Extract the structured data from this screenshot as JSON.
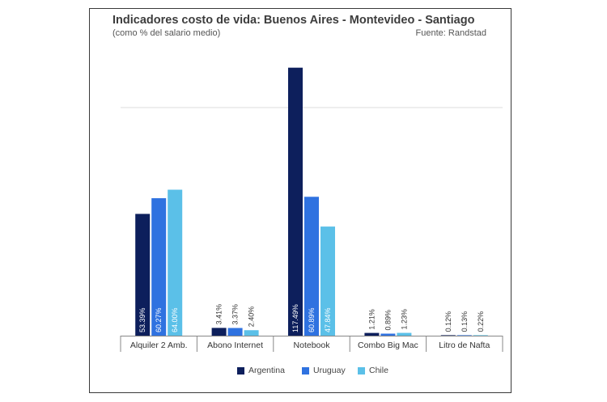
{
  "chart_data": {
    "type": "bar",
    "title": "Indicadores costo de vida: Buenos Aires - Montevideo - Santiago",
    "subtitle": "(como % del salario medio)",
    "source": "Fuente: Randstad",
    "categories": [
      "Alquiler 2 Amb.",
      "Abono Internet",
      "Notebook",
      "Combo Big Mac",
      "Litro de Nafta"
    ],
    "series": [
      {
        "name": "Argentina",
        "color": "#0d1f5c",
        "values": [
          53.39,
          3.41,
          117.49,
          1.21,
          0.12
        ],
        "labels": [
          "53.39%",
          "3.41%",
          "117.49%",
          "1.21%",
          "0.12%"
        ]
      },
      {
        "name": "Uruguay",
        "color": "#2f72e0",
        "values": [
          60.27,
          3.37,
          60.89,
          0.89,
          0.13
        ],
        "labels": [
          "60.27%",
          "3.37%",
          "60.89%",
          "0.89%",
          "0.13%"
        ]
      },
      {
        "name": "Chile",
        "color": "#5bc0e8",
        "values": [
          64.0,
          2.4,
          47.84,
          1.23,
          0.22
        ],
        "labels": [
          "64.00%",
          "2.40%",
          "47.84%",
          "1.23%",
          "0.22%"
        ]
      }
    ],
    "ylim": [
      0,
      120
    ],
    "gridline_at": 100,
    "legend_position": "bottom",
    "xlabel": "",
    "ylabel": ""
  }
}
